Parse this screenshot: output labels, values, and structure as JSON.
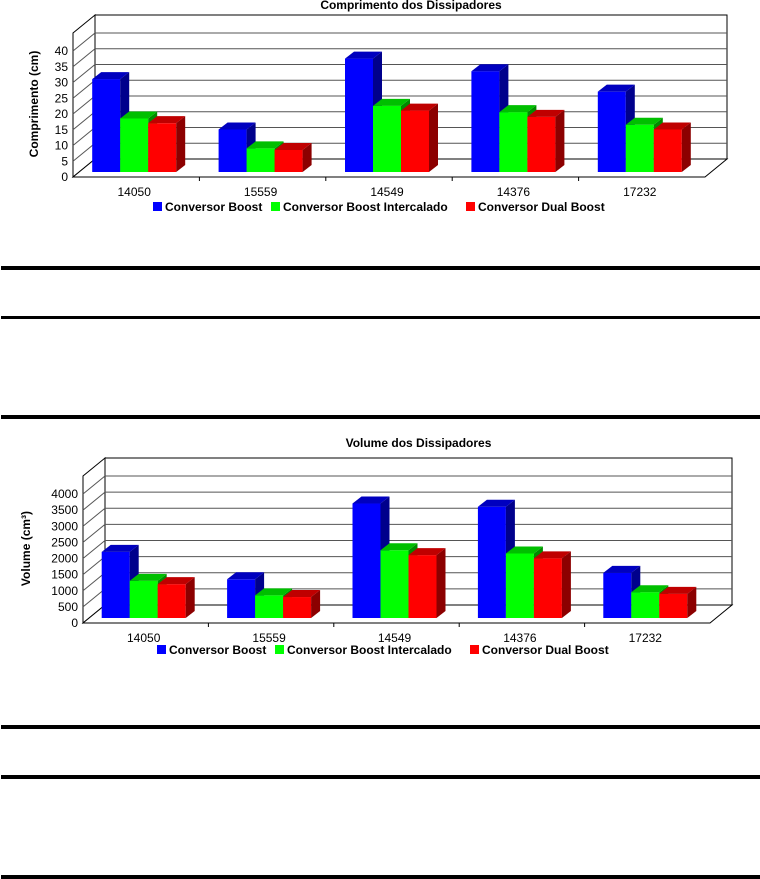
{
  "colors": {
    "boost": "#0000ff",
    "interleaved": "#00ff00",
    "dual": "#ff0000"
  },
  "chart_data": [
    {
      "type": "bar",
      "title": "Comprimento dos Dissipadores",
      "xlabel": "",
      "ylabel": "Comprimento (cm)",
      "ylim": [
        0,
        40
      ],
      "yticks": [
        "0",
        "5",
        "10",
        "15",
        "20",
        "25",
        "30",
        "35",
        "40"
      ],
      "grid": true,
      "legend_position": "bottom",
      "categories": [
        "14050",
        "15559",
        "14549",
        "14376",
        "17232"
      ],
      "series": [
        {
          "name": "Conversor Boost",
          "values": [
            29.5,
            13.5,
            36,
            32,
            25.5
          ]
        },
        {
          "name": "Conversor Boost Intercalado",
          "values": [
            17,
            7.5,
            21,
            19,
            15
          ]
        },
        {
          "name": "Conversor Dual Boost",
          "values": [
            15.5,
            7,
            19.5,
            17.5,
            13.5
          ]
        }
      ]
    },
    {
      "type": "bar",
      "title": "Volume dos Dissipadores",
      "xlabel": "",
      "ylabel": "Volume (cm³)",
      "ylim": [
        0,
        4000
      ],
      "yticks": [
        "0",
        "500",
        "1000",
        "1500",
        "2000",
        "2500",
        "3000",
        "3500",
        "4000"
      ],
      "grid": true,
      "legend_position": "bottom",
      "categories": [
        "14050",
        "15559",
        "14549",
        "14376",
        "17232"
      ],
      "series": [
        {
          "name": "Conversor Boost",
          "values": [
            2050,
            1200,
            3550,
            3450,
            1400
          ]
        },
        {
          "name": "Conversor Boost Intercalado",
          "values": [
            1150,
            700,
            2100,
            2000,
            800
          ]
        },
        {
          "name": "Conversor Dual Boost",
          "values": [
            1050,
            650,
            1950,
            1850,
            750
          ]
        }
      ]
    }
  ]
}
